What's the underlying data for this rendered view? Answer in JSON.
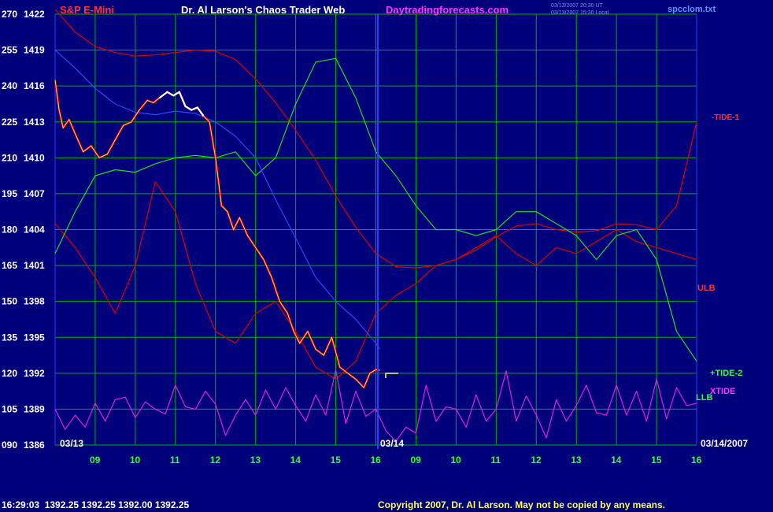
{
  "header": {
    "instrument": "S&P E-Mini",
    "title": "Dr. Al Larson's Chaos Trader Web",
    "site": "Daytradingforecasts.com",
    "timestamp_1": "03/13/2007 20:30 UT",
    "timestamp_2": "03/13/2007 15:30 Local",
    "filename": "spcclom.txt"
  },
  "footer": {
    "quote": "16:29:03  1392.25 1392.25 1392.00 1392.25",
    "copyright": "Copyright 2007, Dr. Al Larson. May not be copied by any means."
  },
  "labels": {
    "tide1": "-TIDE-1",
    "ulb": "ULB",
    "tide2": "+TIDE-2",
    "xtide": "XTIDE",
    "llb": "LLB"
  },
  "dates": {
    "left": "03/13",
    "mid": "03/14",
    "right": "03/14/2007"
  },
  "colors": {
    "background": "#00007a",
    "grid": "#00b000",
    "price": "#ff0000",
    "price_high": "#ffffff",
    "band": "#dd0000",
    "tide2": "#22dd22",
    "xtide": "#dd22dd",
    "ma_blue": "#3344ff",
    "ma_yellow": "#ffff55",
    "divider": "#2244ff"
  },
  "chart_data": {
    "type": "line",
    "y_left_ticks": [
      "270",
      "255",
      "240",
      "225",
      "210",
      "195",
      "180",
      "165",
      "150",
      "135",
      "120",
      "105",
      "090"
    ],
    "y_right_ticks": [
      "1422",
      "1419",
      "1416",
      "1413",
      "1410",
      "1407",
      "1404",
      "1401",
      "1398",
      "1395",
      "1392",
      "1389",
      "1386"
    ],
    "ylim": [
      1386,
      1422
    ],
    "x_ticks": [
      "09",
      "10",
      "11",
      "12",
      "13",
      "14",
      "15",
      "16",
      "09",
      "10",
      "11",
      "12",
      "13",
      "14",
      "15",
      "16"
    ],
    "xlim": [
      8,
      24
    ],
    "series": [
      {
        "name": "ULB",
        "x": [
          8,
          8.5,
          9,
          9.5,
          10,
          10.5,
          11,
          11.5,
          12,
          12.5,
          13,
          13.5,
          14,
          14.5,
          15,
          15.5,
          16,
          16.5,
          17,
          17.5,
          18,
          18.5,
          19,
          19.5,
          20,
          20.5,
          21,
          21.5,
          22,
          22.5,
          23,
          23.5,
          24
        ],
        "y": [
          1422.4,
          1420.5,
          1419.3,
          1418.8,
          1418.5,
          1418.6,
          1418.8,
          1419.0,
          1418.9,
          1418.2,
          1416.6,
          1414.6,
          1412.3,
          1409.8,
          1406.8,
          1404.2,
          1402.0,
          1400.9,
          1400.8,
          1401.0,
          1401.5,
          1402.3,
          1403.4,
          1404.3,
          1404.5,
          1404.0,
          1403.8,
          1403.9,
          1404.5,
          1404.4,
          1404.0,
          1406.0,
          1413.0
        ]
      },
      {
        "name": "LLB",
        "x": [
          8,
          8.5,
          9,
          9.5,
          10,
          10.5,
          11,
          11.5,
          12,
          12.5,
          13,
          13.5,
          14,
          14.5,
          15,
          15.5,
          16,
          16.5,
          17,
          17.5,
          18,
          18.5,
          19,
          19.5,
          20,
          20.5,
          21,
          21.5,
          22,
          22.5,
          23,
          23.5,
          24
        ],
        "y": [
          1404.5,
          1402.5,
          1400.0,
          1397.0,
          1401.0,
          1408.0,
          1405.5,
          1399.5,
          1395.5,
          1394.5,
          1397.0,
          1398.0,
          1395.5,
          1392.5,
          1391.5,
          1393.0,
          1397.0,
          1398.5,
          1399.5,
          1401.0,
          1401.5,
          1402.5,
          1403.5,
          1402.0,
          1401.0,
          1402.5,
          1402.0,
          1403.0,
          1404.0,
          1403.0,
          1402.5,
          1402.0,
          1401.5
        ]
      },
      {
        "name": "+TIDE-2",
        "x": [
          8,
          8.5,
          9,
          9.5,
          10,
          10.5,
          11,
          11.5,
          12,
          12.5,
          13,
          13.5,
          14,
          14.5,
          15,
          15.5,
          16,
          16.5,
          17,
          17.5,
          18,
          18.5,
          19,
          19.5,
          20,
          20.5,
          21,
          21.5,
          22,
          22.5,
          23,
          23.5,
          24
        ],
        "y": [
          1402.0,
          1405.5,
          1408.5,
          1409.0,
          1408.8,
          1409.5,
          1410.0,
          1410.2,
          1410.0,
          1410.5,
          1408.5,
          1410.0,
          1414.5,
          1418.0,
          1418.3,
          1415.0,
          1410.5,
          1408.5,
          1406.0,
          1404.0,
          1404.0,
          1403.5,
          1404.0,
          1405.5,
          1405.5,
          1404.5,
          1403.5,
          1401.5,
          1403.5,
          1404.0,
          1401.5,
          1395.5,
          1393.0
        ]
      },
      {
        "name": "XTIDE",
        "x": [
          8,
          8.25,
          8.5,
          8.75,
          9,
          9.25,
          9.5,
          9.75,
          10,
          10.25,
          10.5,
          10.75,
          11,
          11.25,
          11.5,
          11.75,
          12,
          12.25,
          12.5,
          12.75,
          13,
          13.25,
          13.5,
          13.75,
          14,
          14.25,
          14.5,
          14.75,
          15,
          15.25,
          15.5,
          15.75,
          16,
          16.25,
          16.5,
          16.75,
          17,
          17.25,
          17.5,
          17.75,
          18,
          18.25,
          18.5,
          18.75,
          19,
          19.25,
          19.5,
          19.75,
          20,
          20.25,
          20.5,
          20.75,
          21,
          21.25,
          21.5,
          21.75,
          22,
          22.25,
          22.5,
          22.75,
          23,
          23.25,
          23.5,
          23.75,
          24
        ],
        "y": [
          1389.0,
          1387.3,
          1388.5,
          1387.5,
          1389.5,
          1388.0,
          1389.8,
          1390.0,
          1388.3,
          1389.6,
          1389.0,
          1388.6,
          1391.0,
          1389.2,
          1389.0,
          1390.5,
          1389.4,
          1386.8,
          1388.5,
          1389.8,
          1388.5,
          1390.6,
          1389.0,
          1390.8,
          1389.3,
          1388.0,
          1390.2,
          1388.5,
          1392.3,
          1387.8,
          1390.5,
          1388.4,
          1389.0,
          1387.2,
          1386.3,
          1387.5,
          1387.0,
          1391.0,
          1388.0,
          1389.2,
          1389.0,
          1387.5,
          1390.2,
          1388.0,
          1389.0,
          1392.2,
          1388.0,
          1390.1,
          1388.5,
          1386.6,
          1389.8,
          1388.0,
          1389.3,
          1391.0,
          1388.7,
          1388.5,
          1391.0,
          1388.5,
          1390.5,
          1388.0,
          1391.5,
          1388.2,
          1390.8,
          1389.3,
          1389.5
        ]
      },
      {
        "name": "blue-ma",
        "x": [
          8,
          8.5,
          9,
          9.5,
          10,
          10.5,
          11,
          11.5,
          12,
          12.5,
          13,
          13.5,
          14,
          14.5,
          15,
          15.5,
          16,
          16.1
        ],
        "y": [
          1419.0,
          1417.5,
          1415.8,
          1414.5,
          1413.8,
          1413.6,
          1413.9,
          1413.7,
          1413.0,
          1411.8,
          1410.0,
          1406.5,
          1403.3,
          1400.0,
          1398.0,
          1396.5,
          1394.5,
          1394.0
        ]
      },
      {
        "name": "price",
        "x": [
          8,
          8.1,
          8.2,
          8.35,
          8.5,
          8.7,
          8.9,
          9.1,
          9.3,
          9.5,
          9.7,
          9.9,
          10.1,
          10.3,
          10.45,
          10.6,
          10.8,
          10.95,
          11.1,
          11.25,
          11.4,
          11.55,
          11.7,
          11.85,
          12.0,
          12.15,
          12.3,
          12.45,
          12.6,
          12.8,
          13.0,
          13.2,
          13.4,
          13.6,
          13.8,
          13.95,
          14.1,
          14.3,
          14.5,
          14.7,
          14.9,
          15.1,
          15.3,
          15.5,
          15.7,
          15.85,
          16.0,
          16.1
        ],
        "y": [
          1416.5,
          1414.0,
          1412.5,
          1413.2,
          1412.0,
          1410.5,
          1411.0,
          1410.0,
          1410.3,
          1411.5,
          1412.7,
          1413.0,
          1414.0,
          1414.8,
          1414.6,
          1415.0,
          1415.5,
          1415.2,
          1415.5,
          1414.3,
          1414.0,
          1414.2,
          1413.5,
          1413.0,
          1410.0,
          1406.0,
          1405.5,
          1404.0,
          1405.0,
          1403.5,
          1402.5,
          1401.5,
          1400.0,
          1398.0,
          1397.0,
          1395.5,
          1394.5,
          1395.5,
          1394.0,
          1393.5,
          1395.0,
          1392.5,
          1392.0,
          1391.5,
          1390.8,
          1392.0,
          1392.3,
          1392.25
        ]
      }
    ]
  }
}
